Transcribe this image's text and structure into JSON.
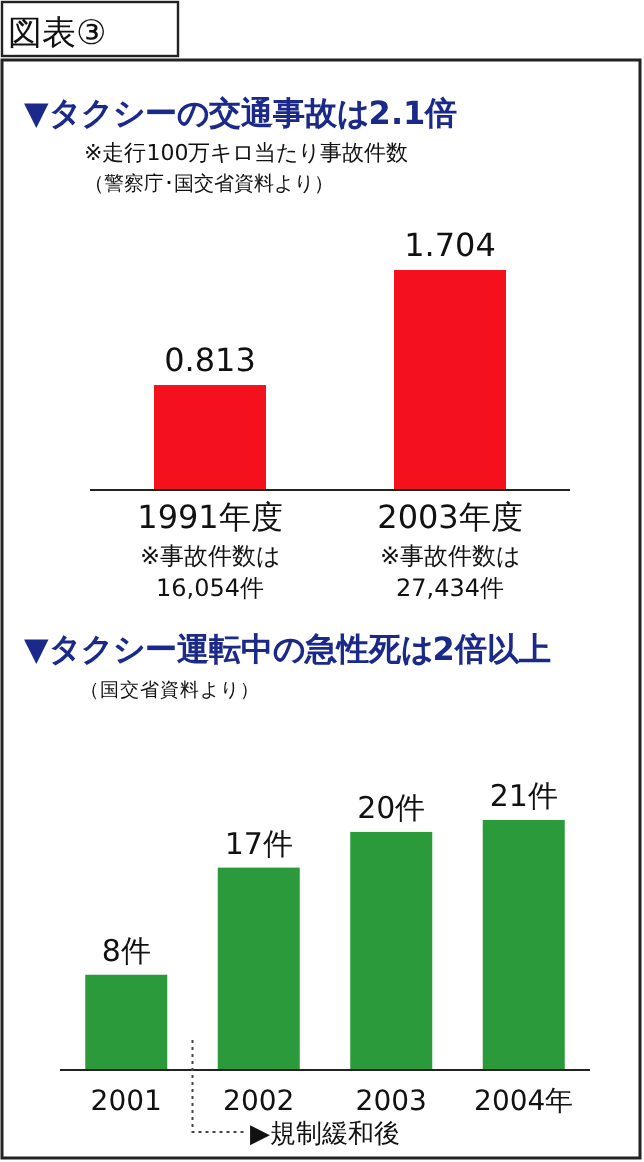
{
  "chart_data": [
    {
      "type": "bar",
      "title": "▼タクシーの交通事故は2.1倍",
      "subtitle": "※走行100万キロ当たり事故件数",
      "categories": [
        "1991年度",
        "2003年度"
      ],
      "values": [
        0.813,
        1.704
      ],
      "color": "#f5101e",
      "data_labels": true,
      "annotations": [
        "図表③",
        "（警察庁･国交省資料より）",
        "※事故件数は",
        "16,054件",
        "※事故件数は",
        "27,434件"
      ]
    },
    {
      "type": "bar",
      "title": "▼タクシー運転中の急性死は2倍以上",
      "subtitle": "（国交省資料より）",
      "categories": [
        "2001",
        "2002",
        "2003",
        "2004年"
      ],
      "values": [
        8,
        17,
        20,
        21
      ],
      "color": "#2a9a3a",
      "value_labels": [
        "8件",
        "17件",
        "20件",
        "21件"
      ],
      "annotations": [
        "▶規制緩和後"
      ]
    }
  ]
}
